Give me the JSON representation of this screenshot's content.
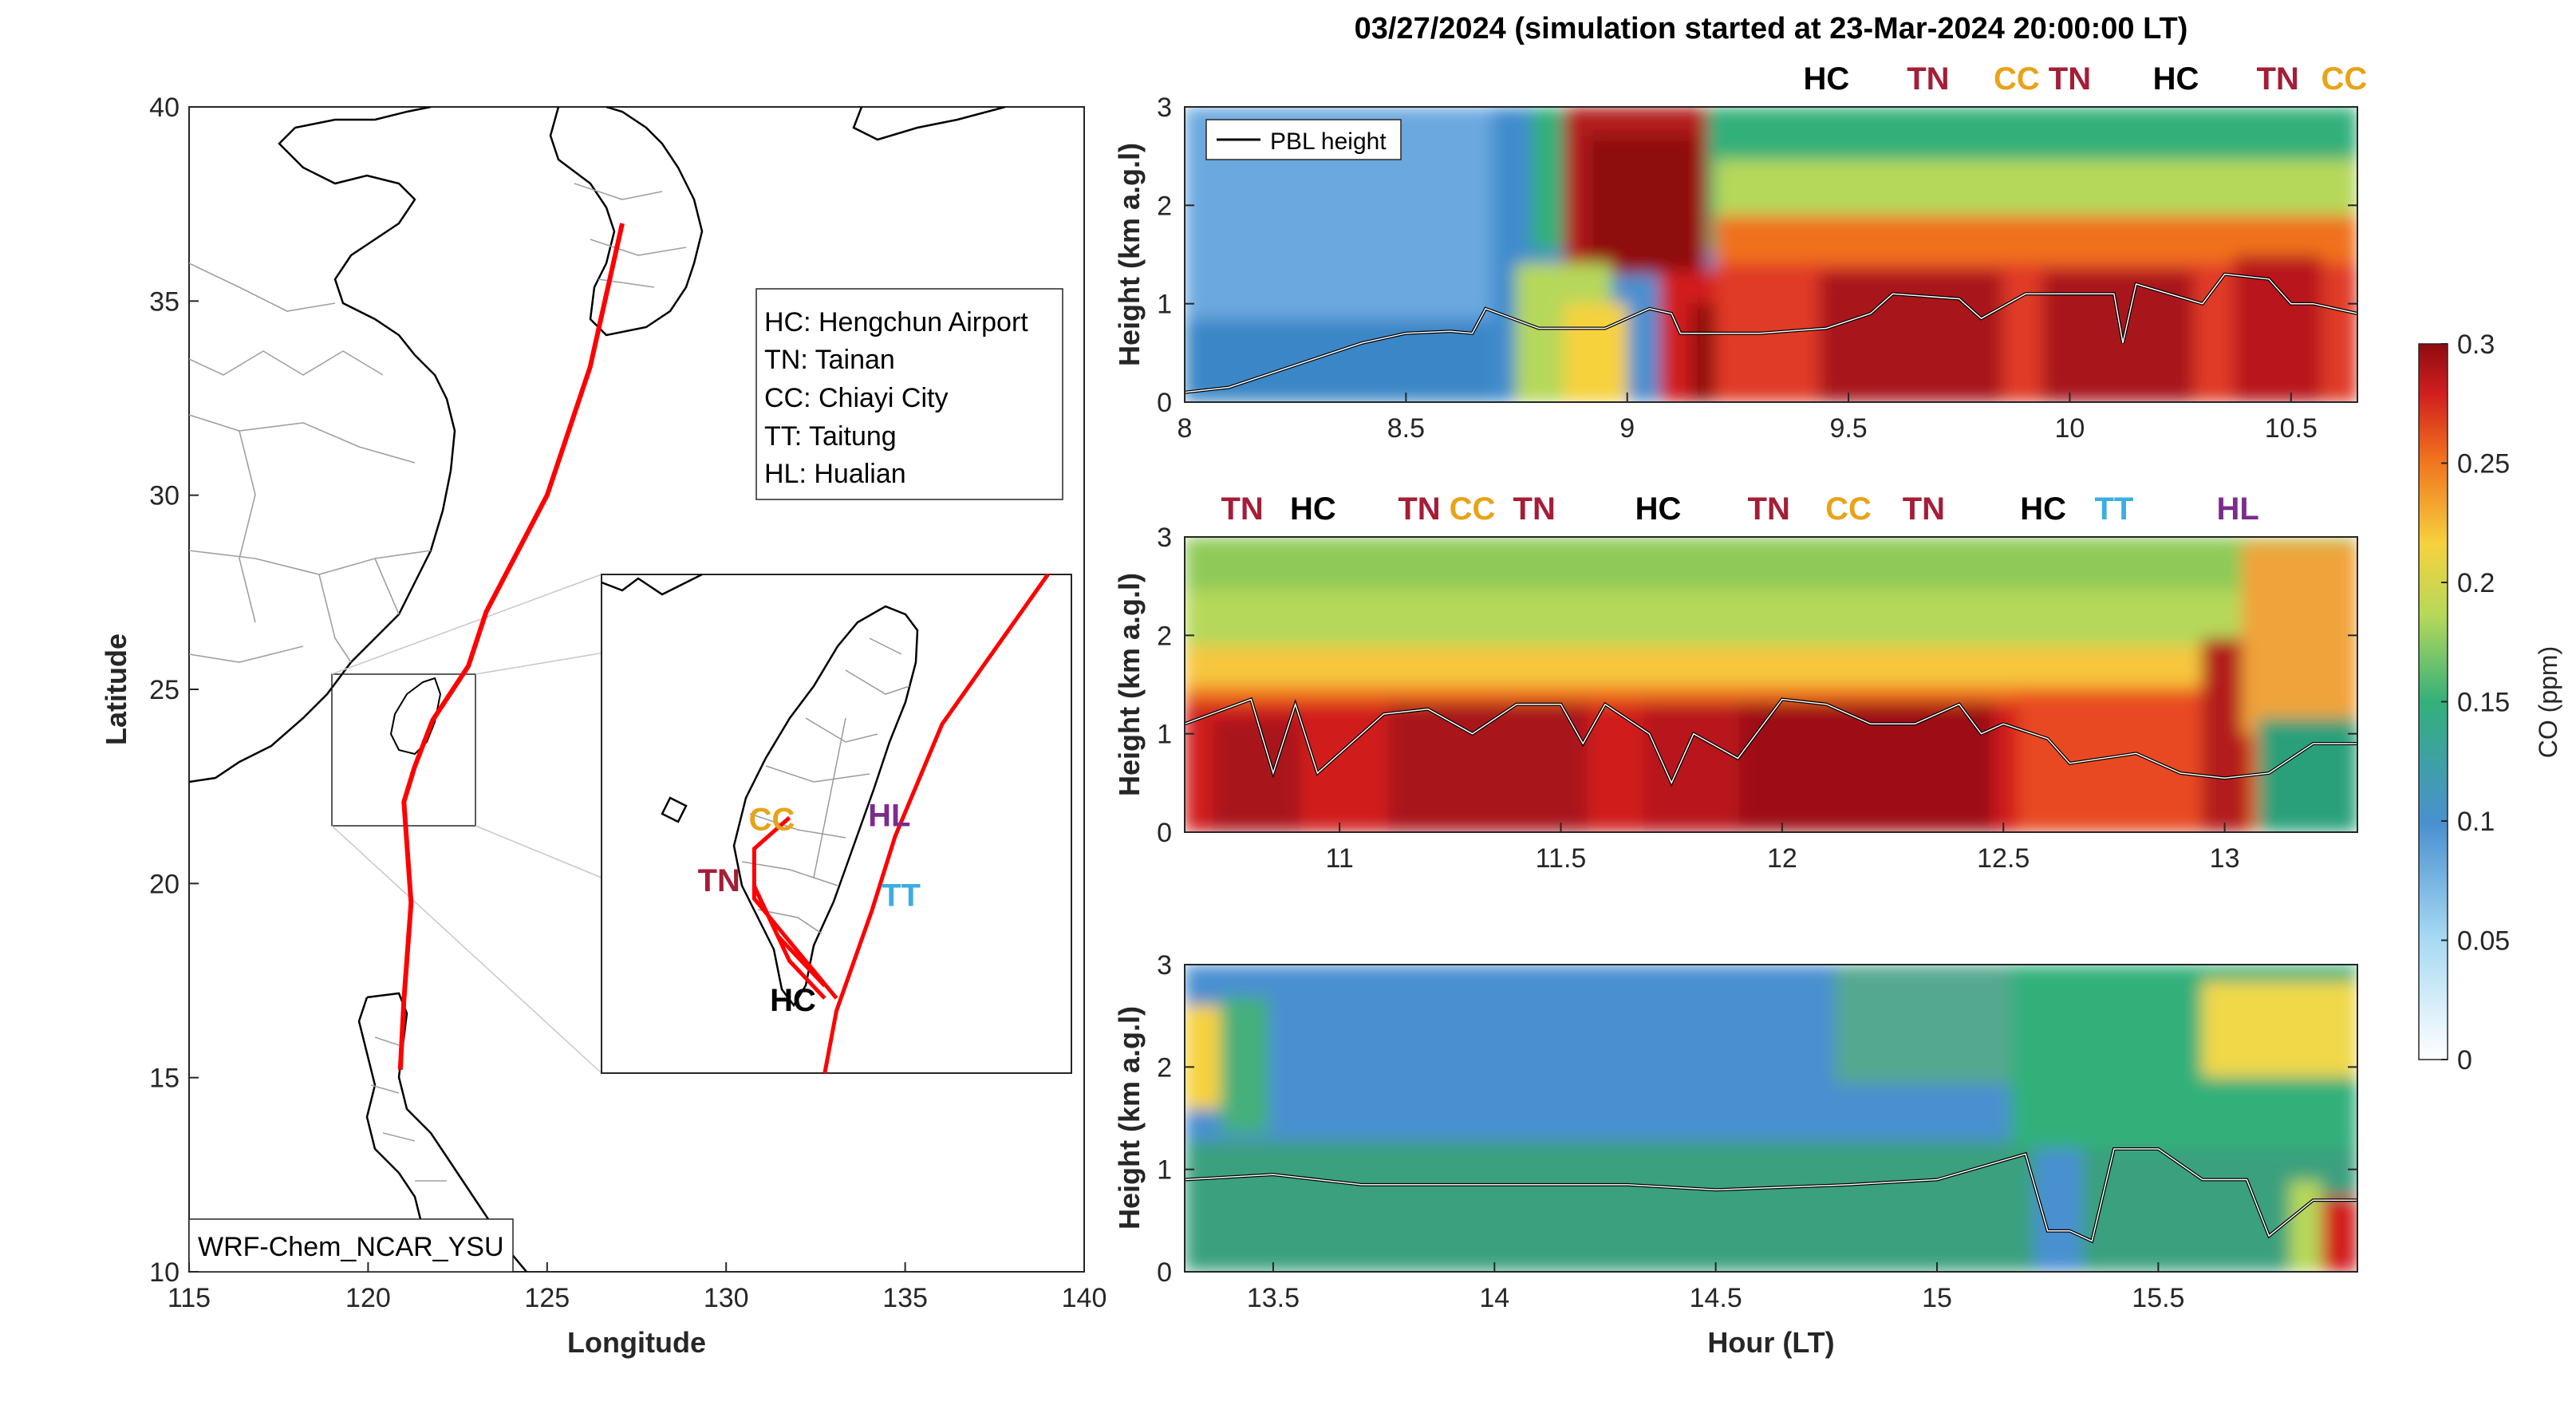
{
  "colors": {
    "TN": "#a51d36",
    "HC": "#000000",
    "CC": "#e8a317",
    "TT": "#3aaee0",
    "HL": "#7b2c8c",
    "track": "#ff0000",
    "pbl": "#000000"
  },
  "map": {
    "xlabel": "Longitude",
    "ylabel": "Latitude",
    "xlim": [
      115,
      140
    ],
    "ylim": [
      10,
      40
    ],
    "xticks": [
      "115",
      "120",
      "125",
      "130",
      "135",
      "140"
    ],
    "yticks": [
      "10",
      "15",
      "20",
      "25",
      "30",
      "35",
      "40"
    ],
    "legend": [
      "HC: Hengchun Airport",
      "TN: Tainan",
      "CC: Chiayi City",
      "TT: Taitung",
      "HL: Hualian"
    ],
    "model_label": "WRF-Chem_NCAR_YSU",
    "track": [
      [
        127.1,
        37.0
      ],
      [
        126.2,
        33.3
      ],
      [
        125.0,
        30.0
      ],
      [
        123.3,
        27.0
      ],
      [
        122.8,
        25.6
      ],
      [
        121.8,
        24.2
      ],
      [
        121.3,
        23.0
      ],
      [
        121.0,
        22.1
      ],
      [
        121.2,
        19.5
      ],
      [
        121.0,
        17.0
      ],
      [
        120.9,
        15.2
      ]
    ],
    "inset": {
      "xlim": [
        119,
        123
      ],
      "ylim": [
        21.5,
        25.5
      ],
      "labels": [
        {
          "code": "CC",
          "lon": 120.45,
          "lat": 23.45
        },
        {
          "code": "HL",
          "lon": 121.45,
          "lat": 23.48
        },
        {
          "code": "TN",
          "lon": 120.0,
          "lat": 22.96
        },
        {
          "code": "TT",
          "lon": 121.55,
          "lat": 22.84
        },
        {
          "code": "HC",
          "lon": 120.63,
          "lat": 22.0
        }
      ],
      "track": [
        [
          122.8,
          25.6
        ],
        [
          121.9,
          24.3
        ],
        [
          121.5,
          23.4
        ],
        [
          121.3,
          22.8
        ],
        [
          121.0,
          22.0
        ],
        [
          120.9,
          21.5
        ]
      ],
      "branches": [
        [
          [
            121.0,
            22.1
          ],
          [
            120.3,
            22.9
          ],
          [
            120.3,
            23.3
          ],
          [
            120.6,
            23.55
          ]
        ],
        [
          [
            120.3,
            23.0
          ],
          [
            120.5,
            22.6
          ],
          [
            120.9,
            22.2
          ]
        ],
        [
          [
            120.3,
            23.0
          ],
          [
            120.6,
            22.4
          ],
          [
            120.9,
            22.1
          ]
        ]
      ]
    }
  },
  "chart_data": {
    "type": "heatmap",
    "title": "03/27/2024 (simulation started at 23-Mar-2024 20:00:00 LT)",
    "xlabel": "Hour (LT)",
    "ylabel": "Height (km a.g.l)",
    "legend_label": "PBL height",
    "colorbar": {
      "label": "CO (ppm)",
      "range": [
        0,
        0.3
      ],
      "ticks": [
        "0",
        "0.05",
        "0.1",
        "0.15",
        "0.2",
        "0.25",
        "0.3"
      ]
    },
    "panels": [
      {
        "xlim": [
          8,
          10.65
        ],
        "ylim": [
          0,
          3
        ],
        "xticks": [
          "8",
          "8.5",
          "9",
          "9.5",
          "10",
          "10.5"
        ],
        "yticks": [
          "0",
          "1",
          "2",
          "3"
        ],
        "sites": [
          "HC",
          "TN",
          "CC",
          "TN",
          "HC",
          "TN",
          "CC"
        ],
        "site_x": [
          9.45,
          9.68,
          9.88,
          10.0,
          10.24,
          10.47,
          10.62
        ],
        "pbl": [
          [
            8.0,
            0.1
          ],
          [
            8.1,
            0.15
          ],
          [
            8.2,
            0.3
          ],
          [
            8.3,
            0.45
          ],
          [
            8.4,
            0.6
          ],
          [
            8.5,
            0.7
          ],
          [
            8.6,
            0.72
          ],
          [
            8.65,
            0.7
          ],
          [
            8.68,
            0.95
          ],
          [
            8.8,
            0.75
          ],
          [
            8.95,
            0.75
          ],
          [
            9.05,
            0.95
          ],
          [
            9.1,
            0.9
          ],
          [
            9.12,
            0.7
          ],
          [
            9.3,
            0.7
          ],
          [
            9.45,
            0.75
          ],
          [
            9.55,
            0.9
          ],
          [
            9.6,
            1.1
          ],
          [
            9.75,
            1.05
          ],
          [
            9.8,
            0.85
          ],
          [
            9.9,
            1.1
          ],
          [
            10.1,
            1.1
          ],
          [
            10.12,
            0.6
          ],
          [
            10.15,
            1.2
          ],
          [
            10.3,
            1.0
          ],
          [
            10.35,
            1.3
          ],
          [
            10.45,
            1.25
          ],
          [
            10.5,
            1.0
          ],
          [
            10.55,
            1.0
          ],
          [
            10.65,
            0.9
          ]
        ]
      },
      {
        "xlim": [
          10.65,
          13.3
        ],
        "ylim": [
          0,
          3
        ],
        "xticks": [
          "11",
          "11.5",
          "12",
          "12.5",
          "13"
        ],
        "yticks": [
          "0",
          "1",
          "2",
          "3"
        ],
        "sites": [
          "TN",
          "HC",
          "TN",
          "CC",
          "TN",
          "HC",
          "TN",
          "CC",
          "TN",
          "HC",
          "TT",
          "HL"
        ],
        "site_x": [
          10.78,
          10.94,
          11.18,
          11.3,
          11.44,
          11.72,
          11.97,
          12.15,
          12.32,
          12.59,
          12.75,
          13.03
        ],
        "pbl": [
          [
            10.65,
            1.1
          ],
          [
            10.8,
            1.35
          ],
          [
            10.85,
            0.6
          ],
          [
            10.9,
            1.3
          ],
          [
            10.95,
            0.6
          ],
          [
            11.1,
            1.2
          ],
          [
            11.2,
            1.25
          ],
          [
            11.3,
            1.0
          ],
          [
            11.4,
            1.3
          ],
          [
            11.5,
            1.3
          ],
          [
            11.55,
            0.9
          ],
          [
            11.6,
            1.3
          ],
          [
            11.7,
            1.0
          ],
          [
            11.75,
            0.5
          ],
          [
            11.8,
            1.0
          ],
          [
            11.9,
            0.75
          ],
          [
            12.0,
            1.35
          ],
          [
            12.1,
            1.3
          ],
          [
            12.2,
            1.1
          ],
          [
            12.3,
            1.1
          ],
          [
            12.4,
            1.3
          ],
          [
            12.45,
            1.0
          ],
          [
            12.5,
            1.1
          ],
          [
            12.6,
            0.95
          ],
          [
            12.65,
            0.7
          ],
          [
            12.8,
            0.8
          ],
          [
            12.9,
            0.6
          ],
          [
            13.0,
            0.55
          ],
          [
            13.1,
            0.6
          ],
          [
            13.2,
            0.9
          ],
          [
            13.3,
            0.9
          ]
        ]
      },
      {
        "xlim": [
          13.3,
          15.95
        ],
        "ylim": [
          0,
          3
        ],
        "xticks": [
          "13.5",
          "14",
          "14.5",
          "15",
          "15.5"
        ],
        "yticks": [
          "0",
          "1",
          "2",
          "3"
        ],
        "sites": [],
        "site_x": [],
        "pbl": [
          [
            13.3,
            0.9
          ],
          [
            13.5,
            0.95
          ],
          [
            13.7,
            0.85
          ],
          [
            14.0,
            0.85
          ],
          [
            14.3,
            0.85
          ],
          [
            14.5,
            0.8
          ],
          [
            14.8,
            0.85
          ],
          [
            15.0,
            0.9
          ],
          [
            15.2,
            1.15
          ],
          [
            15.25,
            0.4
          ],
          [
            15.3,
            0.4
          ],
          [
            15.35,
            0.3
          ],
          [
            15.4,
            1.2
          ],
          [
            15.5,
            1.2
          ],
          [
            15.6,
            0.9
          ],
          [
            15.7,
            0.9
          ],
          [
            15.75,
            0.35
          ],
          [
            15.85,
            0.7
          ],
          [
            15.95,
            0.7
          ]
        ]
      }
    ]
  }
}
